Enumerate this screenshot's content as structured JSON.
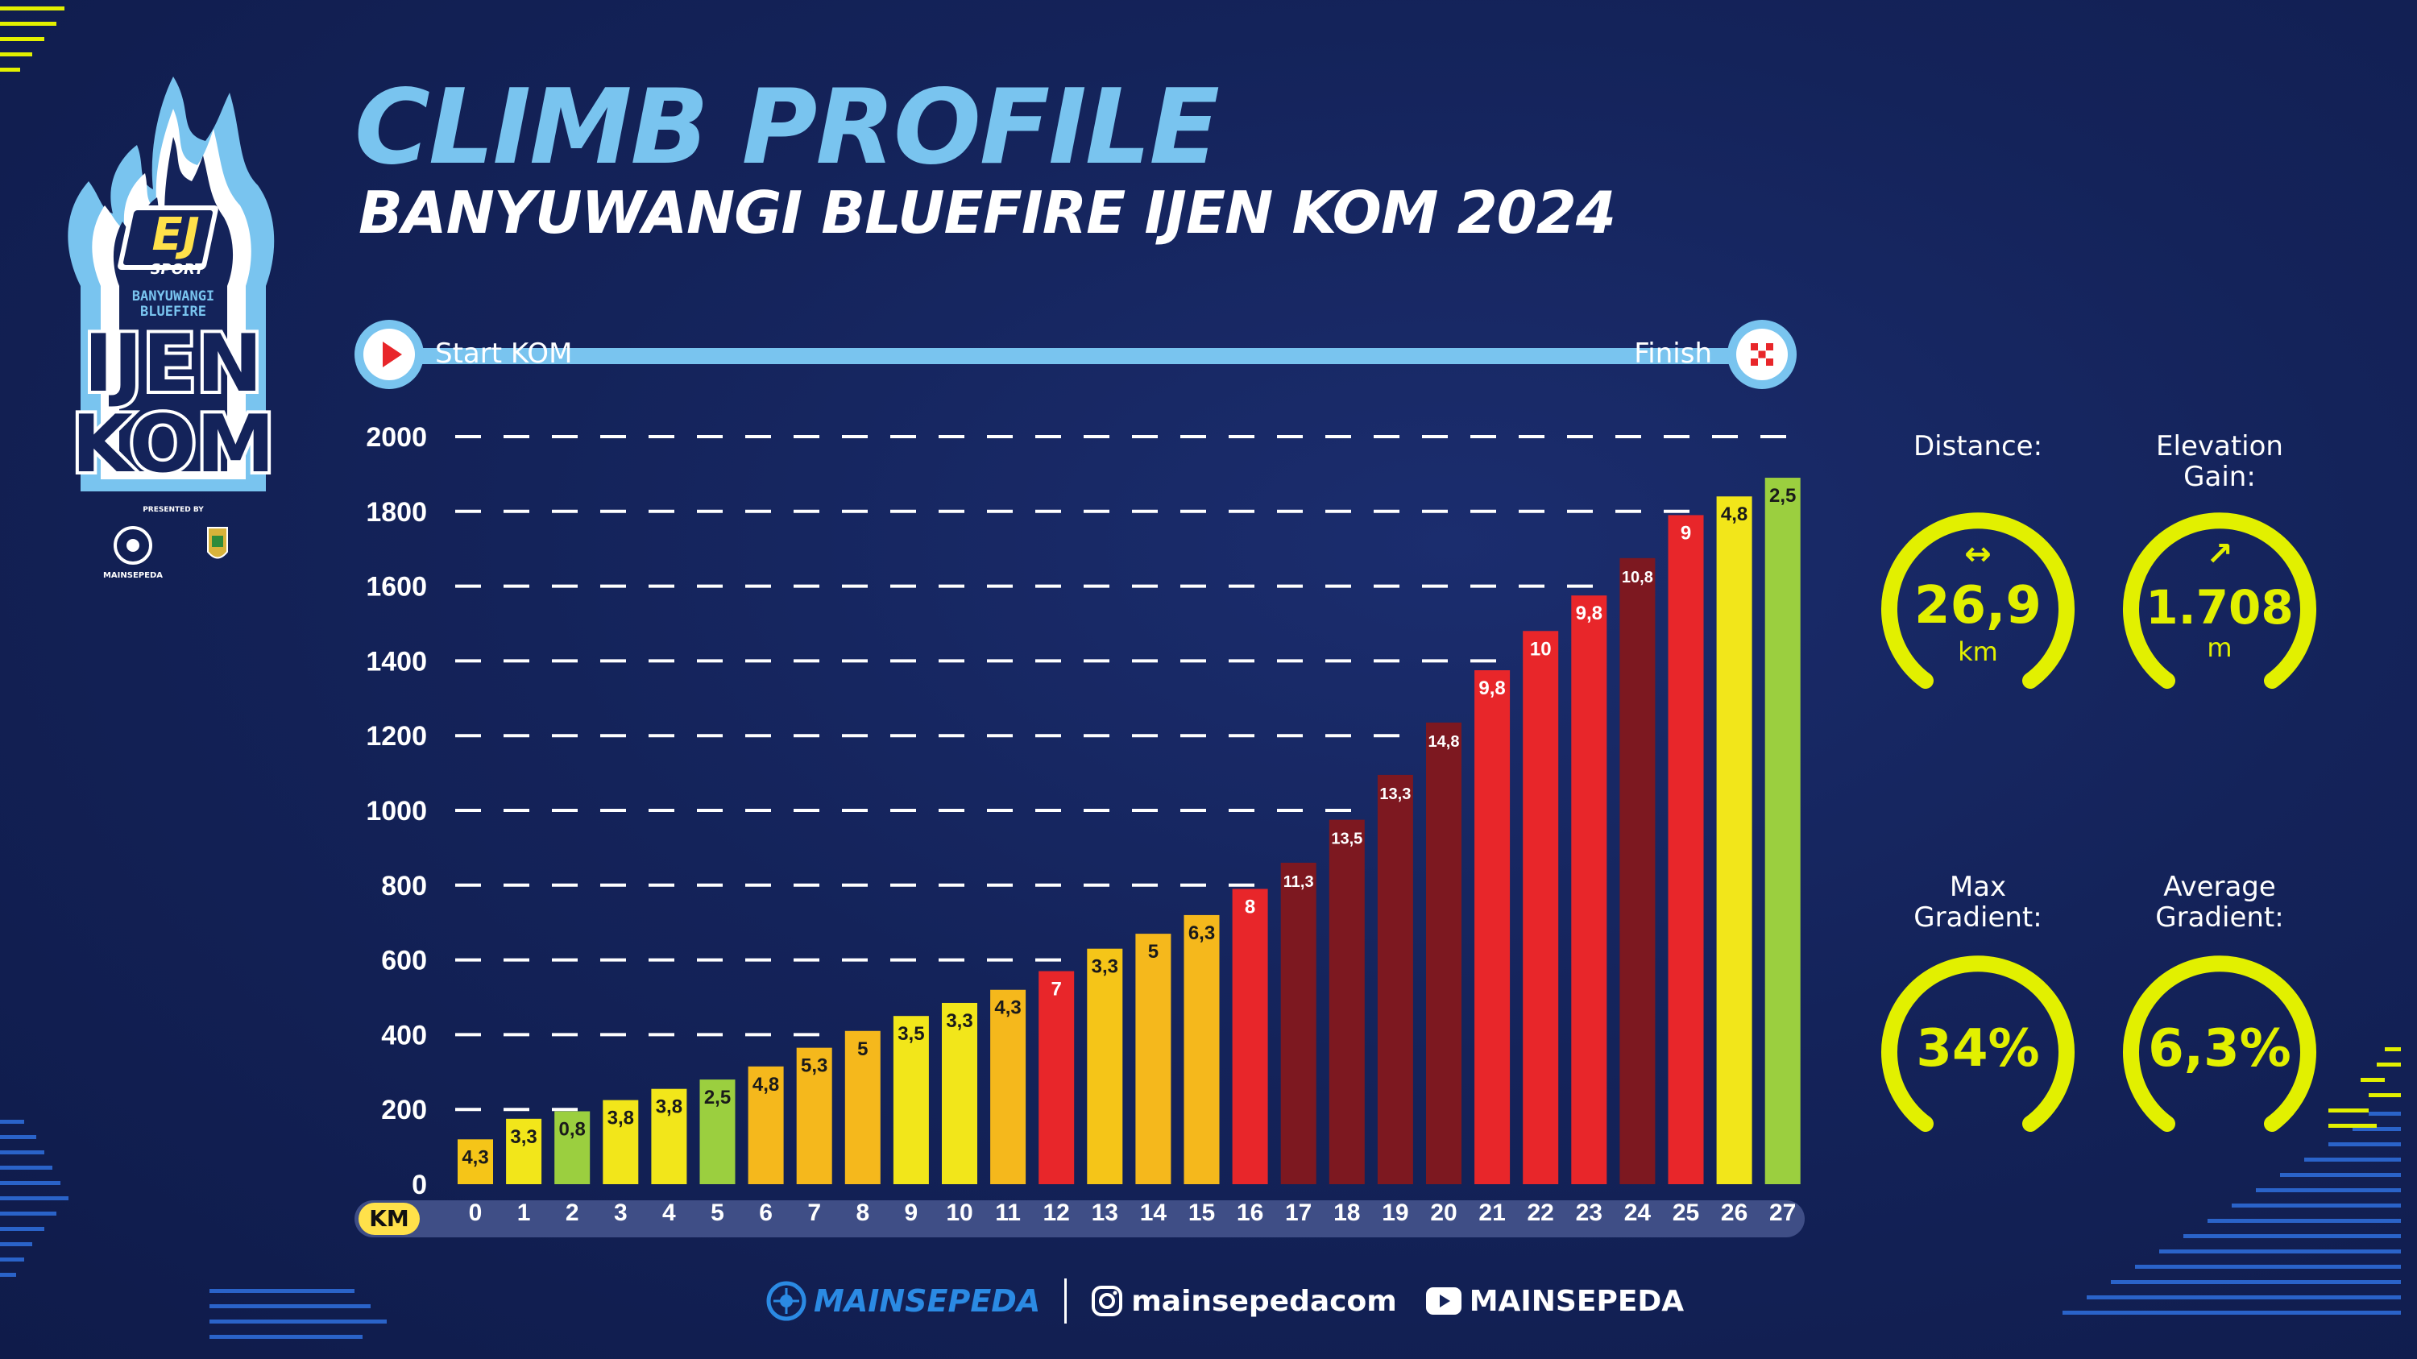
{
  "header": {
    "title": "CLIMB PROFILE",
    "subtitle": "BANYUWANGI BLUEFIRE IJEN KOM 2024"
  },
  "logo": {
    "brand": "EJ",
    "brand_sub": "SPORT",
    "line1": "BANYUWANGI",
    "line2": "BLUEFIRE",
    "word1": "IJEN",
    "word2": "KOM",
    "presented_by": "PRESENTED BY",
    "sponsor": "MAINSEPEDA"
  },
  "route": {
    "start_label": "Start KOM",
    "finish_label": "Finish"
  },
  "chart_data": {
    "type": "bar",
    "xlabel": "KM",
    "ylabel": "",
    "ylim": [
      0,
      2000
    ],
    "yticks": [
      0,
      200,
      400,
      600,
      800,
      1000,
      1200,
      1400,
      1600,
      1800,
      2000
    ],
    "categories": [
      "0",
      "1",
      "2",
      "3",
      "4",
      "5",
      "6",
      "7",
      "8",
      "9",
      "10",
      "11",
      "12",
      "13",
      "14",
      "15",
      "16",
      "17",
      "18",
      "19",
      "20",
      "21",
      "22",
      "23",
      "24",
      "25",
      "26",
      "27"
    ],
    "values": [
      120,
      175,
      195,
      225,
      255,
      280,
      315,
      365,
      410,
      450,
      485,
      520,
      570,
      630,
      670,
      720,
      790,
      860,
      975,
      1095,
      1235,
      1375,
      1480,
      1575,
      1675,
      1790,
      1840,
      1890
    ],
    "gradient_labels": [
      "4,3",
      "3,3",
      "0,8",
      "3,8",
      "3,8",
      "2,5",
      "4,8",
      "5,3",
      "5",
      "3,5",
      "3,3",
      "4,3",
      "7",
      "3,3",
      "5",
      "6,3",
      "8",
      "11,3",
      "13,5",
      "13,3",
      "14,8",
      "9,8",
      "10",
      "9,8",
      "10,8",
      "9",
      "4,8",
      "2,5"
    ],
    "bar_colors": [
      "#f5c518",
      "#f2e61a",
      "#9bcf3f",
      "#f2e61a",
      "#f2e61a",
      "#9bcf3f",
      "#f5b81c",
      "#f5b81c",
      "#f5b81c",
      "#f2e61a",
      "#f2e61a",
      "#f5b81c",
      "#e8262a",
      "#f5c518",
      "#f5b81c",
      "#f5b81c",
      "#e8262a",
      "#7d1820",
      "#7d1820",
      "#7d1820",
      "#7d1820",
      "#e8262a",
      "#e8262a",
      "#e8262a",
      "#7d1820",
      "#e8262a",
      "#f2e61a",
      "#9bcf3f"
    ],
    "gridline_style": "dashed",
    "colors": {
      "axis_text": "#ffffff",
      "grid": "#ffffff",
      "km_bar": "#3f4e86"
    }
  },
  "stats": {
    "distance": {
      "label": "Distance:",
      "value": "26,9",
      "unit": "km",
      "icon": "double-arrow-icon"
    },
    "elevation": {
      "label_line1": "Elevation",
      "label_line2": "Gain:",
      "value": "1.708",
      "unit": "m",
      "icon": "arrow-up-right-icon"
    },
    "max_gradient": {
      "label_line1": "Max",
      "label_line2": "Gradient:",
      "value": "34%"
    },
    "avg_gradient": {
      "label_line1": "Average",
      "label_line2": "Gradient:",
      "value": "6,3%"
    },
    "accent_color": "#e2f000"
  },
  "footer": {
    "brand": "MAINSEPEDA",
    "instagram": "mainsepedacom",
    "youtube": "MAINSEPEDA"
  }
}
